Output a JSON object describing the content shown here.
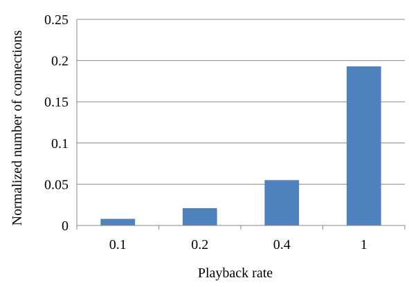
{
  "chart_data": {
    "type": "bar",
    "categories": [
      "0.1",
      "0.2",
      "0.4",
      "1"
    ],
    "values": [
      0.008,
      0.021,
      0.055,
      0.193
    ],
    "xlabel": "Playback rate",
    "ylabel": "Normalized  number of connections",
    "ylim": [
      0,
      0.25
    ],
    "yticks": [
      "0",
      "0.05",
      "0.1",
      "0.15",
      "0.2",
      "0.25"
    ],
    "grid": true,
    "legend": "none",
    "colors": {
      "bar": "#4F81BD",
      "grid": "#868686",
      "axis": "#868686"
    }
  }
}
